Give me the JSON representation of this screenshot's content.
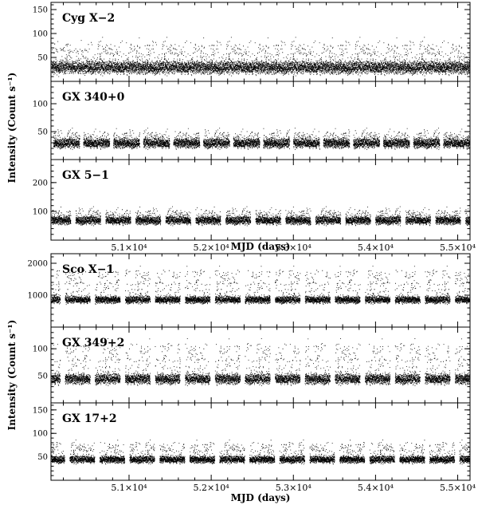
{
  "chart_data": [
    {
      "type": "scatter",
      "xlabel": "MJD (days)",
      "ylabel": "Intensity (Count s⁻¹)",
      "xlim": [
        50050,
        55150
      ],
      "x_ticks": [
        51000,
        52000,
        53000,
        54000,
        55000
      ],
      "x_tick_labels": [
        "5.1×10⁴",
        "5.2×10⁴",
        "5.3×10⁴",
        "5.4×10⁴",
        "5.5×10⁴"
      ],
      "panels": [
        {
          "name": "Cyg X−2",
          "ylim": [
            0,
            165
          ],
          "yticks": [
            50,
            100,
            150
          ],
          "ytick_labels": [
            "50",
            "100",
            "150"
          ],
          "baseline": 30,
          "spread": 14,
          "peak": 88,
          "gap_period": 0,
          "gap_phase": 0,
          "gap_width": 0
        },
        {
          "name": "GX 340+0",
          "ylim": [
            0,
            140
          ],
          "yticks": [
            50,
            100
          ],
          "ytick_labels": [
            "50",
            "100"
          ],
          "baseline": 30,
          "spread": 9,
          "peak": 52,
          "gap_period": 365,
          "gap_phase": 0.05,
          "gap_width": 45
        },
        {
          "name": "GX 5−1",
          "ylim": [
            0,
            280
          ],
          "yticks": [
            100,
            200
          ],
          "ytick_labels": [
            "100",
            "200"
          ],
          "baseline": 70,
          "spread": 15,
          "peak": 110,
          "gap_period": 365,
          "gap_phase": 0.35,
          "gap_width": 60
        }
      ]
    },
    {
      "type": "scatter",
      "xlabel": "MJD (days)",
      "ylabel": "Intensity (Count s⁻¹)",
      "xlim": [
        50050,
        55150
      ],
      "x_ticks": [
        51000,
        52000,
        53000,
        54000,
        55000
      ],
      "x_tick_labels": [
        "5.1×10⁴",
        "5.2×10⁴",
        "5.3×10⁴",
        "5.4×10⁴",
        "5.5×10⁴"
      ],
      "panels": [
        {
          "name": "Sco X−1",
          "ylim": [
            0,
            2300
          ],
          "yticks": [
            1000,
            2000
          ],
          "ytick_labels": [
            "1000",
            "2000"
          ],
          "baseline": 870,
          "spread": 120,
          "peak": 1950,
          "gap_period": 365,
          "gap_phase": 0.7,
          "gap_width": 60
        },
        {
          "name": "GX 349+2",
          "ylim": [
            0,
            140
          ],
          "yticks": [
            50,
            100
          ],
          "ytick_labels": [
            "50",
            "100"
          ],
          "baseline": 45,
          "spread": 10,
          "peak": 120,
          "gap_period": 365,
          "gap_phase": 0.7,
          "gap_width": 60
        },
        {
          "name": "GX 17+2",
          "ylim": [
            0,
            165
          ],
          "yticks": [
            50,
            100,
            150
          ],
          "ytick_labels": [
            "50",
            "100",
            "150"
          ],
          "baseline": 45,
          "spread": 8,
          "peak": 85,
          "gap_period": 365,
          "gap_phase": 0.55,
          "gap_width": 60
        }
      ]
    }
  ]
}
